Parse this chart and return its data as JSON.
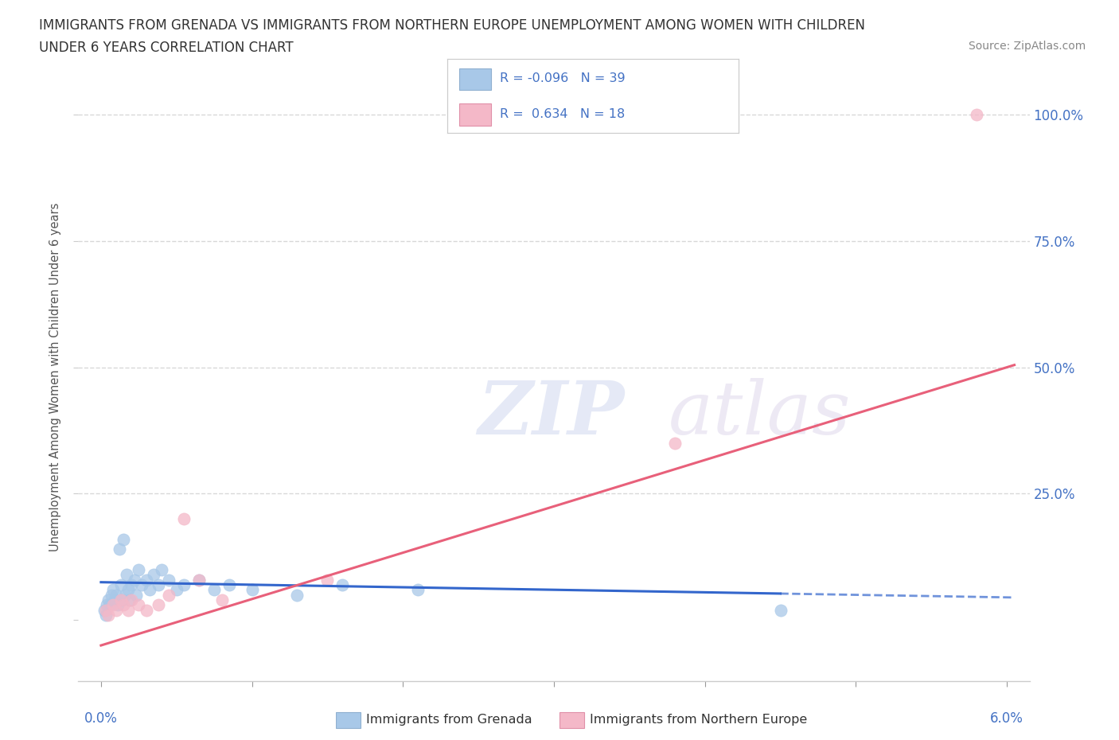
{
  "title_line1": "IMMIGRANTS FROM GRENADA VS IMMIGRANTS FROM NORTHERN EUROPE UNEMPLOYMENT AMONG WOMEN WITH CHILDREN",
  "title_line2": "UNDER 6 YEARS CORRELATION CHART",
  "source": "Source: ZipAtlas.com",
  "ylabel": "Unemployment Among Women with Children Under 6 years",
  "legend1_label": "Immigrants from Grenada",
  "legend2_label": "Immigrants from Northern Europe",
  "R1": -0.096,
  "N1": 39,
  "R2": 0.634,
  "N2": 18,
  "grenada_x": [
    0.02,
    0.03,
    0.04,
    0.05,
    0.06,
    0.07,
    0.08,
    0.09,
    0.1,
    0.11,
    0.12,
    0.13,
    0.14,
    0.15,
    0.16,
    0.17,
    0.18,
    0.19,
    0.2,
    0.22,
    0.23,
    0.25,
    0.27,
    0.3,
    0.32,
    0.35,
    0.38,
    0.4,
    0.45,
    0.5,
    0.55,
    0.65,
    0.75,
    0.85,
    1.0,
    1.3,
    1.6,
    2.1,
    4.5
  ],
  "grenada_y": [
    2,
    1,
    3,
    4,
    3,
    5,
    6,
    4,
    5,
    3,
    14,
    7,
    4,
    16,
    5,
    9,
    6,
    4,
    7,
    8,
    5,
    10,
    7,
    8,
    6,
    9,
    7,
    10,
    8,
    6,
    7,
    8,
    6,
    7,
    6,
    5,
    7,
    6,
    2
  ],
  "northern_x": [
    0.03,
    0.05,
    0.08,
    0.1,
    0.13,
    0.15,
    0.18,
    0.2,
    0.25,
    0.3,
    0.38,
    0.45,
    0.55,
    0.65,
    0.8,
    1.5,
    3.8,
    5.8
  ],
  "northern_y": [
    2,
    1,
    3,
    2,
    4,
    3,
    2,
    4,
    3,
    2,
    3,
    5,
    20,
    8,
    4,
    8,
    35,
    100
  ],
  "watermark_zip": "ZIP",
  "watermark_atlas": "atlas",
  "background_color": "#ffffff",
  "grid_color": "#d8d8d8",
  "blue_line_color": "#3366cc",
  "pink_line_color": "#e8607a",
  "blue_scatter_color": "#a8c8e8",
  "pink_scatter_color": "#f4b8c8",
  "right_label_color": "#4472c4",
  "title_color": "#333333",
  "source_color": "#888888",
  "legend_label_color": "#333333"
}
